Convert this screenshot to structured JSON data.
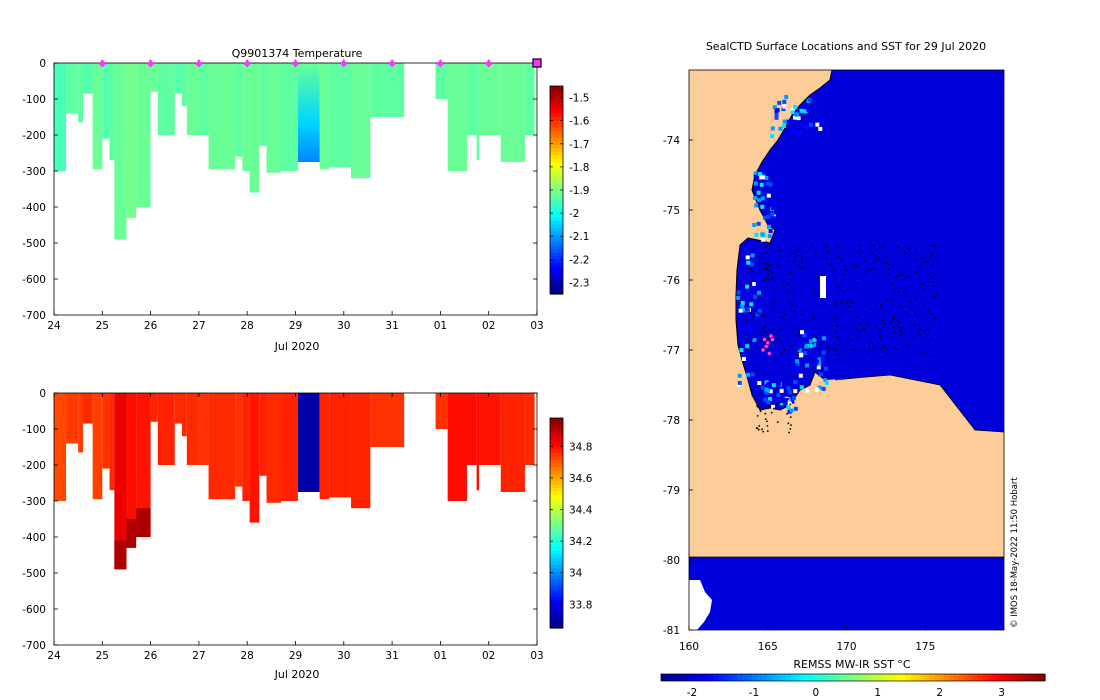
{
  "chart_data": [
    {
      "type": "heatmap",
      "title": "Q9901374  Temperature",
      "xlabel": "Jul 2020",
      "ylabel": "",
      "x_ticks": [
        "24",
        "25",
        "26",
        "27",
        "28",
        "29",
        "30",
        "31",
        "01",
        "02",
        "03"
      ],
      "x_range": [
        24,
        34
      ],
      "y_ticks": [
        0,
        -100,
        -200,
        -300,
        -400,
        -500,
        -600,
        -700
      ],
      "ylim": [
        -700,
        0
      ],
      "colorbar": {
        "ticks": [
          -1.5,
          -1.6,
          -1.7,
          -1.8,
          -1.9,
          -2,
          -2.1,
          -2.2,
          -2.3
        ],
        "range": [
          -2.35,
          -1.45
        ],
        "colormap": "jet"
      },
      "marker_days": [
        25,
        26,
        27,
        28,
        29,
        30,
        31,
        32,
        33
      ],
      "last_marker_day": 34,
      "profiles": [
        {
          "x0": 24.0,
          "x1": 24.25,
          "depth": 300,
          "value": -1.95
        },
        {
          "x0": 24.25,
          "x1": 24.5,
          "depth": 140,
          "value": -1.93
        },
        {
          "x0": 24.5,
          "x1": 24.6,
          "depth": 165,
          "value": -1.93
        },
        {
          "x0": 24.6,
          "x1": 24.8,
          "depth": 85,
          "value": -1.94
        },
        {
          "x0": 24.8,
          "x1": 25.0,
          "depth": 295,
          "value": -1.92
        },
        {
          "x0": 25.0,
          "x1": 25.15,
          "depth": 210,
          "value": -1.94
        },
        {
          "x0": 25.15,
          "x1": 25.25,
          "depth": 270,
          "value": -1.93
        },
        {
          "x0": 25.25,
          "x1": 25.5,
          "depth": 490,
          "value": -1.92
        },
        {
          "x0": 25.5,
          "x1": 25.7,
          "depth": 430,
          "value": -1.91
        },
        {
          "x0": 25.7,
          "x1": 26.0,
          "depth": 400,
          "value": -1.92
        },
        {
          "x0": 26.0,
          "x1": 26.15,
          "depth": 80,
          "value": -1.92
        },
        {
          "x0": 26.15,
          "x1": 26.5,
          "depth": 200,
          "value": -1.93
        },
        {
          "x0": 26.5,
          "x1": 26.65,
          "depth": 85,
          "value": -1.94
        },
        {
          "x0": 26.65,
          "x1": 26.75,
          "depth": 120,
          "value": -1.93
        },
        {
          "x0": 26.75,
          "x1": 27.0,
          "depth": 200,
          "value": -1.92
        },
        {
          "x0": 27.0,
          "x1": 27.2,
          "depth": 200,
          "value": -1.93
        },
        {
          "x0": 27.2,
          "x1": 27.75,
          "depth": 295,
          "value": -1.92
        },
        {
          "x0": 27.75,
          "x1": 27.9,
          "depth": 260,
          "value": -1.93
        },
        {
          "x0": 27.9,
          "x1": 28.05,
          "depth": 300,
          "value": -1.92
        },
        {
          "x0": 28.05,
          "x1": 28.25,
          "depth": 360,
          "value": -1.92
        },
        {
          "x0": 28.25,
          "x1": 28.4,
          "depth": 230,
          "value": -1.93
        },
        {
          "x0": 28.4,
          "x1": 28.7,
          "depth": 305,
          "value": -1.92
        },
        {
          "x0": 28.7,
          "x1": 29.05,
          "depth": 300,
          "value": -1.93
        },
        {
          "x0": 29.05,
          "x1": 29.5,
          "depth": 275,
          "value": -2.0
        },
        {
          "x0": 29.5,
          "x1": 29.7,
          "depth": 295,
          "value": -1.92
        },
        {
          "x0": 29.7,
          "x1": 30.15,
          "depth": 290,
          "value": -1.93
        },
        {
          "x0": 30.15,
          "x1": 30.55,
          "depth": 320,
          "value": -1.92
        },
        {
          "x0": 30.55,
          "x1": 31.25,
          "depth": 150,
          "value": -1.93
        },
        {
          "x0": 31.9,
          "x1": 32.15,
          "depth": 100,
          "value": -1.93
        },
        {
          "x0": 32.15,
          "x1": 32.55,
          "depth": 300,
          "value": -1.92
        },
        {
          "x0": 32.55,
          "x1": 32.75,
          "depth": 200,
          "value": -1.93
        },
        {
          "x0": 32.75,
          "x1": 32.8,
          "depth": 270,
          "value": -1.93
        },
        {
          "x0": 32.8,
          "x1": 33.25,
          "depth": 200,
          "value": -1.92
        },
        {
          "x0": 33.25,
          "x1": 33.75,
          "depth": 275,
          "value": -1.92
        },
        {
          "x0": 33.75,
          "x1": 33.95,
          "depth": 200,
          "value": -1.93
        }
      ]
    },
    {
      "type": "heatmap",
      "title": "",
      "xlabel": "Jul 2020",
      "ylabel": "",
      "x_ticks": [
        "24",
        "25",
        "26",
        "27",
        "28",
        "29",
        "30",
        "31",
        "01",
        "02",
        "03"
      ],
      "x_range": [
        24,
        34
      ],
      "y_ticks": [
        0,
        -100,
        -200,
        -300,
        -400,
        -500,
        -600,
        -700
      ],
      "ylim": [
        -700,
        0
      ],
      "colorbar": {
        "ticks": [
          34.8,
          34.6,
          34.4,
          34.2,
          34,
          33.8
        ],
        "range": [
          33.65,
          34.98
        ],
        "colormap": "jet"
      },
      "profiles": [
        {
          "x0": 24.0,
          "x1": 24.25,
          "depth": 300,
          "value": 34.72
        },
        {
          "x0": 24.25,
          "x1": 24.5,
          "depth": 140,
          "value": 34.74
        },
        {
          "x0": 24.5,
          "x1": 24.6,
          "depth": 165,
          "value": 34.74
        },
        {
          "x0": 24.6,
          "x1": 24.8,
          "depth": 85,
          "value": 34.76
        },
        {
          "x0": 24.8,
          "x1": 25.0,
          "depth": 295,
          "value": 34.73
        },
        {
          "x0": 25.0,
          "x1": 25.15,
          "depth": 210,
          "value": 34.75
        },
        {
          "x0": 25.15,
          "x1": 25.25,
          "depth": 270,
          "value": 34.76
        },
        {
          "x0": 25.25,
          "x1": 25.5,
          "depth": 490,
          "value": 34.84
        },
        {
          "x0": 25.5,
          "x1": 25.7,
          "depth": 430,
          "value": 34.8
        },
        {
          "x0": 25.7,
          "x1": 26.0,
          "depth": 400,
          "value": 34.79
        },
        {
          "x0": 26.0,
          "x1": 26.15,
          "depth": 80,
          "value": 34.77
        },
        {
          "x0": 26.15,
          "x1": 26.5,
          "depth": 200,
          "value": 34.77
        },
        {
          "x0": 26.5,
          "x1": 26.65,
          "depth": 85,
          "value": 34.76
        },
        {
          "x0": 26.65,
          "x1": 26.75,
          "depth": 120,
          "value": 34.76
        },
        {
          "x0": 26.75,
          "x1": 27.0,
          "depth": 200,
          "value": 34.76
        },
        {
          "x0": 27.0,
          "x1": 27.2,
          "depth": 200,
          "value": 34.75
        },
        {
          "x0": 27.2,
          "x1": 27.75,
          "depth": 295,
          "value": 34.76
        },
        {
          "x0": 27.75,
          "x1": 27.9,
          "depth": 260,
          "value": 34.75
        },
        {
          "x0": 27.9,
          "x1": 28.05,
          "depth": 300,
          "value": 34.77
        },
        {
          "x0": 28.05,
          "x1": 28.25,
          "depth": 360,
          "value": 34.79
        },
        {
          "x0": 28.25,
          "x1": 28.4,
          "depth": 230,
          "value": 34.77
        },
        {
          "x0": 28.4,
          "x1": 28.7,
          "depth": 305,
          "value": 34.76
        },
        {
          "x0": 28.7,
          "x1": 29.05,
          "depth": 300,
          "value": 34.77
        },
        {
          "x0": 29.05,
          "x1": 29.5,
          "depth": 275,
          "value": 33.7
        },
        {
          "x0": 29.5,
          "x1": 29.7,
          "depth": 295,
          "value": 34.77
        },
        {
          "x0": 29.7,
          "x1": 30.15,
          "depth": 290,
          "value": 34.77
        },
        {
          "x0": 30.15,
          "x1": 30.55,
          "depth": 320,
          "value": 34.77
        },
        {
          "x0": 30.55,
          "x1": 31.25,
          "depth": 150,
          "value": 34.75
        },
        {
          "x0": 31.9,
          "x1": 32.15,
          "depth": 100,
          "value": 34.75
        },
        {
          "x0": 32.15,
          "x1": 32.55,
          "depth": 300,
          "value": 34.8
        },
        {
          "x0": 32.55,
          "x1": 32.75,
          "depth": 200,
          "value": 34.8
        },
        {
          "x0": 32.75,
          "x1": 32.8,
          "depth": 270,
          "value": 34.8
        },
        {
          "x0": 32.8,
          "x1": 33.25,
          "depth": 200,
          "value": 34.79
        },
        {
          "x0": 33.25,
          "x1": 33.75,
          "depth": 275,
          "value": 34.77
        },
        {
          "x0": 33.75,
          "x1": 33.95,
          "depth": 200,
          "value": 34.76
        }
      ]
    },
    {
      "type": "heatmap",
      "title": "SealCTD Surface Locations and SST for 29 Jul 2020",
      "xlabel": "",
      "ylabel": "",
      "xlim": [
        160,
        180
      ],
      "ylim": [
        -81,
        -73
      ],
      "x_ticks": [
        160,
        165,
        170,
        175
      ],
      "y_ticks": [
        -74,
        -75,
        -76,
        -77,
        -78,
        -79,
        -80,
        -81
      ],
      "colorbar": {
        "label": "REMSS MW-IR SST °C",
        "ticks": [
          -2,
          -1,
          0,
          1,
          2,
          3
        ],
        "range": [
          -2.5,
          3.7
        ],
        "colormap": "jet"
      },
      "ocean_sst": -1.95,
      "land_color": "#fccc99",
      "credit": "© IMOS 18-May-2022 11:50 Hobart",
      "surface_positions": [
        [
          165.0,
          -76.9
        ],
        [
          165.2,
          -76.8
        ],
        [
          164.9,
          -76.95
        ],
        [
          164.7,
          -77.0
        ],
        [
          165.3,
          -76.85
        ],
        [
          165.1,
          -77.05
        ],
        [
          164.8,
          -76.85
        ]
      ]
    }
  ]
}
